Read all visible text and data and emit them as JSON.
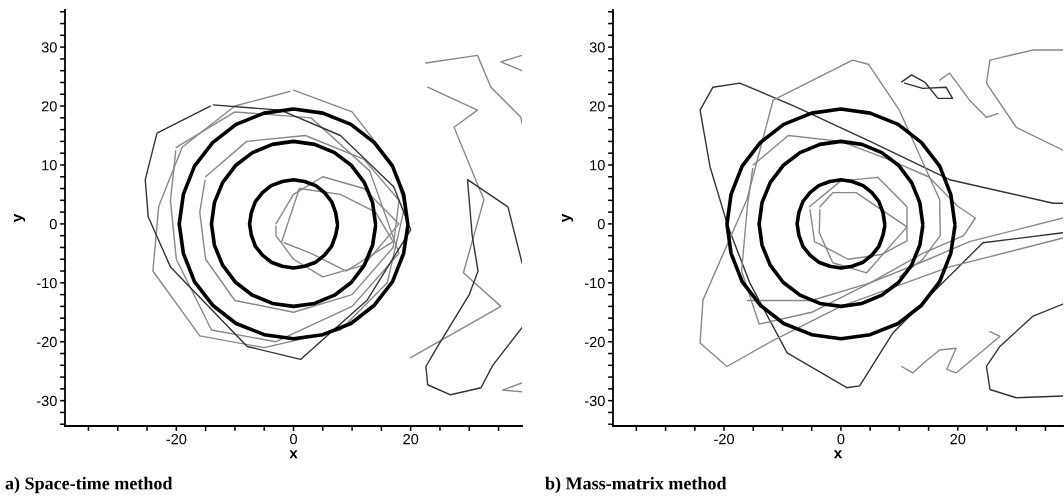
{
  "chart_data": [
    {
      "type": "line",
      "title": "a) Space-time method",
      "xlabel": "x",
      "ylabel": "y",
      "xlim": [
        -39,
        39
      ],
      "ylim": [
        -34.3,
        36.3
      ],
      "xticks": [
        {
          "value": -35,
          "label": null
        },
        {
          "value": -30,
          "label": null
        },
        {
          "value": -25,
          "label": null
        },
        -20,
        {
          "value": -15,
          "label": null
        },
        {
          "value": -10,
          "label": null
        },
        {
          "value": -5,
          "label": null
        },
        0,
        {
          "value": 5,
          "label": null
        },
        {
          "value": 10,
          "label": null
        },
        {
          "value": 15,
          "label": null
        },
        20,
        {
          "value": 25,
          "label": null
        },
        {
          "value": 30,
          "label": null
        },
        {
          "value": 35,
          "label": null
        }
      ],
      "yticks": [
        {
          "value": -34,
          "label": null
        },
        {
          "value": -32,
          "label": null
        },
        -30,
        {
          "value": -28,
          "label": null
        },
        {
          "value": -26,
          "label": null
        },
        {
          "value": -24,
          "label": null
        },
        {
          "value": -22,
          "label": null
        },
        -20,
        {
          "value": -18,
          "label": null
        },
        {
          "value": -16,
          "label": null
        },
        {
          "value": -14,
          "label": null
        },
        {
          "value": -12,
          "label": null
        },
        -10,
        {
          "value": -8,
          "label": null
        },
        {
          "value": -6,
          "label": null
        },
        {
          "value": -4,
          "label": null
        },
        {
          "value": -2,
          "label": null
        },
        0,
        {
          "value": 2,
          "label": null
        },
        {
          "value": 4,
          "label": null
        },
        {
          "value": 6,
          "label": null
        },
        {
          "value": 8,
          "label": null
        },
        10,
        {
          "value": 12,
          "label": null
        },
        {
          "value": 14,
          "label": null
        },
        {
          "value": 16,
          "label": null
        },
        {
          "value": 18,
          "label": null
        },
        20,
        {
          "value": 22,
          "label": null
        },
        {
          "value": 24,
          "label": null
        },
        {
          "value": 26,
          "label": null
        },
        {
          "value": 28,
          "label": null
        },
        30,
        {
          "value": 32,
          "label": null
        },
        {
          "value": 34,
          "label": null
        },
        {
          "value": 36,
          "label": null
        }
      ],
      "grid": false,
      "legend": false,
      "marker": "none",
      "line_style": "solid",
      "series": [
        {
          "color": "#888888",
          "x": [
            0,
            10,
            17,
            19,
            16,
            8,
            -5,
            -16,
            -24,
            -23,
            -19,
            -10,
            -0.6
          ],
          "values": [
            22.7,
            19,
            10,
            3,
            -10,
            -18,
            -21,
            -19,
            -8,
            3,
            13,
            20,
            22.5
          ]
        },
        {
          "color": "#888888",
          "x": [
            -20,
            -10,
            3,
            13,
            18,
            10,
            -3,
            -14,
            -20,
            -21,
            -20.1
          ],
          "values": [
            13,
            19,
            18,
            9,
            -5,
            -14,
            -20,
            -18,
            -6,
            4,
            12.4
          ]
        },
        {
          "color": "#888888",
          "x": [
            -15,
            -8,
            2,
            12,
            18,
            17,
            10,
            0,
            -10,
            -15,
            -16,
            -15.1
          ],
          "values": [
            8,
            14,
            15,
            11,
            4,
            -4,
            -12,
            -15,
            -13,
            -6,
            2,
            7.4
          ]
        },
        {
          "color": "#888888",
          "x": [
            -3,
            0,
            5,
            12,
            18,
            12,
            5,
            0,
            -3,
            -3
          ],
          "values": [
            0,
            5,
            8,
            6,
            0,
            -7,
            -9,
            -6,
            -2,
            -0.4
          ]
        },
        {
          "color": "#888888",
          "x": [
            -2,
            1,
            8,
            14,
            17,
            9,
            3,
            -1.6
          ],
          "values": [
            -3,
            6,
            5,
            2,
            -3,
            -8,
            -5,
            -3.2
          ]
        },
        {
          "color": "#333333",
          "x": [
            -13.7,
            -2.2,
            8,
            17.1,
            20,
            12.6,
            1.2,
            -7.9,
            -21,
            -24.8,
            -25.3,
            -23.3,
            -14.2
          ],
          "values": [
            20.2,
            19.3,
            15,
            6.3,
            -1,
            -12.9,
            -23,
            -20.8,
            -7.3,
            1.2,
            7.5,
            15.4,
            20
          ]
        },
        {
          "color": "#888888",
          "x": [
            22.6,
            31.4,
            33.7,
            38.8,
            39
          ],
          "values": [
            27.3,
            28.6,
            23.2,
            18.1,
            17
          ]
        },
        {
          "color": "#888888",
          "x": [
            22.9,
            31.4,
            27.4,
            32.5,
            29,
            35.4,
            20
          ],
          "values": [
            23.2,
            19.3,
            16.4,
            4.1,
            -8.3,
            -14,
            -22.7
          ]
        },
        {
          "color": "#333333",
          "x": [
            39,
            36.6,
            29.7,
            30.5,
            31.5,
            30,
            24.6,
            22.6,
            22.9,
            26.8,
            32,
            34,
            39
          ],
          "values": [
            -6.6,
            2.9,
            7.5,
            -2,
            -8,
            -12,
            -20.8,
            -24.2,
            -27.3,
            -29,
            -27.8,
            -24,
            -17.6
          ]
        },
        {
          "color": "#888888",
          "x": [
            39,
            35.4,
            39
          ],
          "values": [
            28.6,
            27.5,
            26
          ]
        },
        {
          "color": "#888888",
          "x": [
            39,
            35.7,
            39
          ],
          "values": [
            -27,
            -28.2,
            -28.5
          ]
        },
        {
          "color": "#000000",
          "x": [
            19.5,
            18.8,
            16.9,
            13.8,
            9.8,
            5.0,
            0,
            -5.0,
            -9.8,
            -13.8,
            -16.9,
            -18.8,
            -19.5,
            -18.8,
            -16.9,
            -13.8,
            -9.8,
            -5.0,
            0,
            5.0,
            9.8,
            13.8,
            16.9,
            18.8,
            19.5
          ],
          "values": [
            0,
            5.0,
            9.8,
            13.8,
            16.9,
            18.8,
            19.5,
            18.8,
            16.9,
            13.8,
            9.8,
            5.0,
            0,
            -5.0,
            -9.8,
            -13.8,
            -16.9,
            -18.8,
            -19.5,
            -18.8,
            -16.9,
            -13.8,
            -9.8,
            -5.0,
            -0.4
          ]
        },
        {
          "color": "#000000",
          "x": [
            14,
            13.5,
            12.1,
            9.9,
            7.0,
            3.6,
            0,
            -3.6,
            -7.0,
            -9.9,
            -12.1,
            -13.5,
            -14,
            -13.5,
            -12.1,
            -9.9,
            -7.0,
            -3.6,
            0,
            3.6,
            7.0,
            9.9,
            12.1,
            13.5,
            14
          ],
          "values": [
            0,
            3.6,
            7.0,
            9.9,
            12.1,
            13.5,
            14,
            13.5,
            12.1,
            9.9,
            7.0,
            3.6,
            0,
            -3.6,
            -7.0,
            -9.9,
            -12.1,
            -13.5,
            -14,
            -13.5,
            -12.1,
            -9.9,
            -7.0,
            -3.6,
            -0.4
          ]
        },
        {
          "color": "#000000",
          "x": [
            7.5,
            7.2,
            6.5,
            5.3,
            3.8,
            1.9,
            0,
            -1.9,
            -3.8,
            -5.3,
            -6.5,
            -7.2,
            -7.5,
            -7.2,
            -6.5,
            -5.3,
            -3.8,
            -1.9,
            0,
            1.9,
            3.8,
            5.3,
            6.5,
            7.2,
            7.5
          ],
          "values": [
            0,
            1.9,
            3.8,
            5.3,
            6.5,
            7.2,
            7.5,
            7.2,
            6.5,
            5.3,
            3.8,
            1.9,
            0,
            -1.9,
            -3.8,
            -5.3,
            -6.5,
            -7.2,
            -7.5,
            -7.2,
            -6.5,
            -5.3,
            -3.8,
            -1.9,
            -0.4
          ]
        }
      ]
    },
    {
      "type": "line",
      "title": "b) Mass-matrix method",
      "xlabel": "x",
      "ylabel": "y",
      "xlim": [
        -39,
        38
      ],
      "ylim": [
        -34.3,
        36.3
      ],
      "xticks": [
        {
          "value": -35,
          "label": null
        },
        {
          "value": -30,
          "label": null
        },
        {
          "value": -25,
          "label": null
        },
        -20,
        {
          "value": -15,
          "label": null
        },
        {
          "value": -10,
          "label": null
        },
        {
          "value": -5,
          "label": null
        },
        0,
        {
          "value": 5,
          "label": null
        },
        {
          "value": 10,
          "label": null
        },
        {
          "value": 15,
          "label": null
        },
        20,
        {
          "value": 25,
          "label": null
        },
        {
          "value": 30,
          "label": null
        },
        {
          "value": 35,
          "label": null
        }
      ],
      "yticks": [
        {
          "value": -34,
          "label": null
        },
        {
          "value": -32,
          "label": null
        },
        -30,
        {
          "value": -28,
          "label": null
        },
        {
          "value": -26,
          "label": null
        },
        {
          "value": -24,
          "label": null
        },
        {
          "value": -22,
          "label": null
        },
        -20,
        {
          "value": -18,
          "label": null
        },
        {
          "value": -16,
          "label": null
        },
        {
          "value": -14,
          "label": null
        },
        {
          "value": -12,
          "label": null
        },
        -10,
        {
          "value": -8,
          "label": null
        },
        {
          "value": -6,
          "label": null
        },
        {
          "value": -4,
          "label": null
        },
        {
          "value": -2,
          "label": null
        },
        0,
        {
          "value": 2,
          "label": null
        },
        {
          "value": 4,
          "label": null
        },
        {
          "value": 6,
          "label": null
        },
        {
          "value": 8,
          "label": null
        },
        10,
        {
          "value": 12,
          "label": null
        },
        {
          "value": 14,
          "label": null
        },
        {
          "value": 16,
          "label": null
        },
        {
          "value": 18,
          "label": null
        },
        20,
        {
          "value": 22,
          "label": null
        },
        {
          "value": 24,
          "label": null
        },
        {
          "value": 26,
          "label": null
        },
        {
          "value": 28,
          "label": null
        },
        30,
        {
          "value": 32,
          "label": null
        },
        {
          "value": 34,
          "label": null
        },
        {
          "value": 36,
          "label": null
        }
      ],
      "grid": false,
      "legend": false,
      "marker": "none",
      "line_style": "solid",
      "series": [
        {
          "color": "#333333",
          "x": [
            38,
            36.3,
            18.6,
            5,
            -8,
            -17.3,
            -21.9,
            -24.1,
            -22.4,
            -19.3,
            -15.6,
            -9.2,
            1,
            3.2,
            8.9,
            15.7,
            24.3,
            38
          ],
          "values": [
            3.5,
            3.5,
            7.5,
            14,
            20,
            23.9,
            23.2,
            19.3,
            9.7,
            -0.5,
            -10,
            -21.9,
            -27.8,
            -27.5,
            -18.5,
            -11.7,
            -3.2,
            -1.5
          ]
        },
        {
          "color": "#888888",
          "x": [
            38,
            18.6,
            0,
            -12,
            -19.5,
            -24.1,
            -23.6,
            -16.1,
            -11.6,
            2,
            4.7,
            10,
            16.9,
            17,
            14,
            10
          ],
          "values": [
            -2.4,
            -7.3,
            -14,
            -20,
            -24.2,
            -20.2,
            -12.9,
            4.1,
            21,
            27.8,
            27.1,
            19.3,
            4.1,
            -2,
            -6,
            -9
          ]
        },
        {
          "color": "#888888",
          "x": [
            -15,
            -9,
            0,
            8,
            15,
            20,
            23,
            21,
            14,
            5,
            -5,
            -14,
            -17,
            -16,
            -15.1
          ],
          "values": [
            10,
            15,
            14,
            11,
            8,
            3,
            1,
            -2,
            -5,
            -10,
            -15,
            -17,
            -8,
            3,
            9.4
          ]
        },
        {
          "color": "#888888",
          "x": [
            -16,
            -5,
            5,
            15,
            22,
            38
          ],
          "values": [
            -13,
            -13,
            -10,
            -6,
            -3,
            1
          ]
        },
        {
          "color": "#888888",
          "x": [
            -3.6,
            -1.4,
            2.6,
            11.3,
            4.4,
            -1.4,
            -3.7,
            -3.6
          ],
          "values": [
            2.9,
            5.3,
            5.3,
            -0.5,
            -8.3,
            -6.6,
            -1.5,
            2.4
          ]
        },
        {
          "color": "#888888",
          "x": [
            -5.4,
            0,
            6.3,
            11.3,
            11.3,
            6.9,
            1.2,
            -4.5,
            -5.3
          ],
          "values": [
            2.9,
            7.3,
            7.9,
            2.9,
            -2.9,
            -5.2,
            -6,
            -3,
            2.4
          ]
        },
        {
          "color": "#888888",
          "x": [
            25.5,
            32.8,
            38
          ],
          "values": [
            27.8,
            29.5,
            29.5
          ]
        },
        {
          "color": "#888888",
          "x": [
            25.5,
            24.9,
            30,
            38
          ],
          "values": [
            27.8,
            23.9,
            16.4,
            12.5
          ]
        },
        {
          "color": "#333333",
          "x": [
            38,
            32.8,
            27.2,
            24.9,
            25.5,
            30,
            38
          ],
          "values": [
            -13.6,
            -15.7,
            -20.8,
            -24.2,
            -28.1,
            -29.5,
            -29.2
          ]
        },
        {
          "color": "#333333",
          "x": [
            10.4,
            12.1,
            14.4,
            16.6,
            19.1,
            18,
            14,
            10.9
          ],
          "values": [
            24.1,
            25.3,
            24,
            21.3,
            21.3,
            23.2,
            23,
            23.9
          ]
        },
        {
          "color": "#888888",
          "x": [
            16.9,
            18.6,
            22,
            24.9,
            26.9
          ],
          "values": [
            24.4,
            25.6,
            21,
            18.1,
            18.7
          ]
        },
        {
          "color": "#888888",
          "x": [
            10.4,
            12.3,
            14.4,
            16.9,
            19.7,
            18.1,
            19.7,
            27.2,
            25.5
          ],
          "values": [
            -24.2,
            -25.3,
            -23.4,
            -21.4,
            -21.1,
            -24.7,
            -25.3,
            -19.1,
            -18.3
          ]
        },
        {
          "color": "#000000",
          "x": [
            19.5,
            18.8,
            16.9,
            13.8,
            9.8,
            5.0,
            0,
            -5.0,
            -9.8,
            -13.8,
            -16.9,
            -18.8,
            -19.5,
            -18.8,
            -16.9,
            -13.8,
            -9.8,
            -5.0,
            0,
            5.0,
            9.8,
            13.8,
            16.9,
            18.8,
            19.5
          ],
          "values": [
            0,
            5.0,
            9.8,
            13.8,
            16.9,
            18.8,
            19.5,
            18.8,
            16.9,
            13.8,
            9.8,
            5.0,
            0,
            -5.0,
            -9.8,
            -13.8,
            -16.9,
            -18.8,
            -19.5,
            -18.8,
            -16.9,
            -13.8,
            -9.8,
            -5.0,
            -0.4
          ]
        },
        {
          "color": "#000000",
          "x": [
            14,
            13.5,
            12.1,
            9.9,
            7.0,
            3.6,
            0,
            -3.6,
            -7.0,
            -9.9,
            -12.1,
            -13.5,
            -14,
            -13.5,
            -12.1,
            -9.9,
            -7.0,
            -3.6,
            0,
            3.6,
            7.0,
            9.9,
            12.1,
            13.5,
            14
          ],
          "values": [
            0,
            3.6,
            7.0,
            9.9,
            12.1,
            13.5,
            14,
            13.5,
            12.1,
            9.9,
            7.0,
            3.6,
            0,
            -3.6,
            -7.0,
            -9.9,
            -12.1,
            -13.5,
            -14,
            -13.5,
            -12.1,
            -9.9,
            -7.0,
            -3.6,
            -0.4
          ]
        },
        {
          "color": "#000000",
          "x": [
            7.5,
            7.2,
            6.5,
            5.3,
            3.8,
            1.9,
            0,
            -1.9,
            -3.8,
            -5.3,
            -6.5,
            -7.2,
            -7.5,
            -7.2,
            -6.5,
            -5.3,
            -3.8,
            -1.9,
            0,
            1.9,
            3.8,
            5.3,
            6.5,
            7.2,
            7.5
          ],
          "values": [
            0,
            1.9,
            3.8,
            5.3,
            6.5,
            7.2,
            7.5,
            7.2,
            6.5,
            5.3,
            3.8,
            1.9,
            0,
            -1.9,
            -3.8,
            -5.3,
            -6.5,
            -7.2,
            -7.5,
            -7.2,
            -6.5,
            -5.3,
            -3.8,
            -1.9,
            -0.4
          ]
        }
      ]
    }
  ]
}
